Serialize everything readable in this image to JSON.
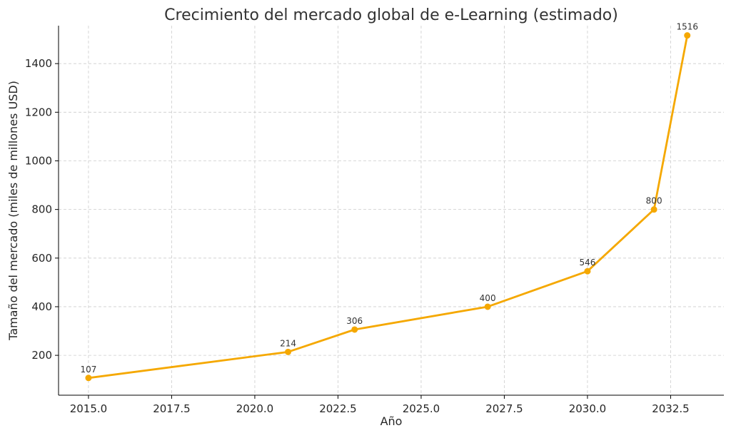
{
  "chart_data": {
    "type": "line",
    "title": "Crecimiento del mercado global de e-Learning (estimado)",
    "xlabel": "Año",
    "ylabel": "Tamaño del mercado (miles de millones USD)",
    "xlim": [
      2014.1,
      2034.1
    ],
    "ylim": [
      36,
      1556
    ],
    "x_ticks": [
      2015.0,
      2017.5,
      2020.0,
      2022.5,
      2025.0,
      2027.5,
      2030.0,
      2032.5
    ],
    "x_tick_labels": [
      "2015.0",
      "2017.5",
      "2020.0",
      "2022.5",
      "2025.0",
      "2027.5",
      "2030.0",
      "2032.5"
    ],
    "y_ticks": [
      200,
      400,
      600,
      800,
      1000,
      1200,
      1400
    ],
    "y_tick_labels": [
      "200",
      "400",
      "600",
      "800",
      "1000",
      "1200",
      "1400"
    ],
    "grid": true,
    "series": [
      {
        "color": "#f5a800",
        "x": [
          2015,
          2021,
          2023,
          2027,
          2030,
          2032,
          2033
        ],
        "values": [
          107,
          214,
          306,
          400,
          546,
          800,
          1516
        ],
        "labels": [
          "107",
          "214",
          "306",
          "400",
          "546",
          "800",
          "1516"
        ]
      }
    ]
  }
}
